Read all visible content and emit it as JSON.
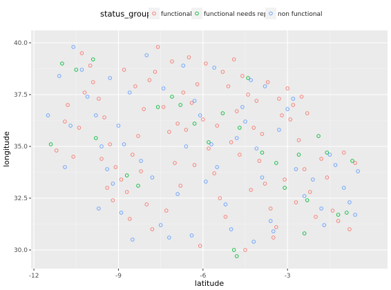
{
  "chart_data": {
    "type": "scatter",
    "xlabel": "latitude",
    "ylabel": "longitude",
    "xlim": [
      -12.1,
      0.55
    ],
    "ylim": [
      29.1,
      40.6
    ],
    "x_ticks": [
      -12,
      -9,
      -6,
      -3
    ],
    "x_tick_labels": [
      "-12",
      "-9",
      "-6",
      "-3"
    ],
    "y_ticks": [
      30.0,
      32.5,
      35.0,
      37.5,
      40.0
    ],
    "y_tick_labels": [
      "30.0",
      "32.5",
      "35.0",
      "37.5",
      "40.0"
    ],
    "grid": true,
    "legend_title": "status_group",
    "legend_position": "top",
    "series": [
      {
        "name": "functional",
        "color": "#f8766d",
        "points": [
          [
            -11.2,
            34.8
          ],
          [
            -10.9,
            36.2
          ],
          [
            -10.6,
            34.5
          ],
          [
            -10.4,
            35.9
          ],
          [
            -10.2,
            37.6
          ],
          [
            -10.0,
            38.9
          ],
          [
            -9.7,
            37.3
          ],
          [
            -9.5,
            36.4
          ],
          [
            -9.3,
            35.1
          ],
          [
            -9.1,
            34.0
          ],
          [
            -8.9,
            33.4
          ],
          [
            -8.7,
            32.8
          ],
          [
            -8.5,
            34.6
          ],
          [
            -8.3,
            35.5
          ],
          [
            -8.1,
            36.8
          ],
          [
            -7.9,
            38.2
          ],
          [
            -7.6,
            39.8
          ],
          [
            -7.4,
            36.9
          ],
          [
            -7.2,
            35.7
          ],
          [
            -7.0,
            34.2
          ],
          [
            -6.8,
            33.1
          ],
          [
            -6.6,
            35.8
          ],
          [
            -6.4,
            37.1
          ],
          [
            -6.2,
            38.0
          ],
          [
            -6.0,
            36.3
          ],
          [
            -5.8,
            34.9
          ],
          [
            -5.6,
            33.7
          ],
          [
            -5.4,
            32.5
          ],
          [
            -5.2,
            31.6
          ],
          [
            -5.0,
            35.2
          ],
          [
            -4.8,
            36.7
          ],
          [
            -4.6,
            38.4
          ],
          [
            -4.4,
            37.5
          ],
          [
            -4.2,
            35.9
          ],
          [
            -4.0,
            34.3
          ],
          [
            -3.8,
            33.2
          ],
          [
            -3.6,
            32.0
          ],
          [
            -3.4,
            31.1
          ],
          [
            -3.2,
            36.5
          ],
          [
            -3.0,
            37.8
          ],
          [
            -2.8,
            37.0
          ],
          [
            -2.6,
            35.3
          ],
          [
            -2.4,
            33.9
          ],
          [
            -2.2,
            32.8
          ],
          [
            -2.0,
            31.6
          ],
          [
            -1.8,
            34.4
          ],
          [
            -1.6,
            33.5
          ],
          [
            -1.4,
            31.9
          ],
          [
            -1.2,
            31.4
          ],
          [
            -1.0,
            34.7
          ],
          [
            -0.8,
            31.0
          ],
          [
            -0.6,
            34.2
          ],
          [
            -9.6,
            34.4
          ],
          [
            -9.4,
            33.0
          ],
          [
            -8.6,
            31.5
          ],
          [
            -8.2,
            33.8
          ],
          [
            -7.8,
            31.0
          ],
          [
            -7.3,
            31.9
          ],
          [
            -6.9,
            36.1
          ],
          [
            -6.7,
            37.6
          ],
          [
            -6.3,
            34.1
          ],
          [
            -5.9,
            39.0
          ],
          [
            -5.5,
            36.0
          ],
          [
            -5.1,
            37.9
          ],
          [
            -4.7,
            34.6
          ],
          [
            -4.3,
            32.9
          ],
          [
            -3.9,
            35.6
          ],
          [
            -3.5,
            30.6
          ],
          [
            -3.1,
            33.4
          ],
          [
            -2.7,
            32.3
          ],
          [
            -2.5,
            37.4
          ],
          [
            -2.3,
            36.6
          ],
          [
            -10.8,
            37.0
          ],
          [
            -10.3,
            39.5
          ],
          [
            -9.9,
            38.1
          ],
          [
            -8.8,
            38.7
          ],
          [
            -8.4,
            37.9
          ],
          [
            -7.7,
            38.6
          ],
          [
            -7.1,
            39.1
          ],
          [
            -6.5,
            39.3
          ],
          [
            -5.3,
            38.6
          ],
          [
            -4.9,
            39.2
          ],
          [
            -4.1,
            37.2
          ],
          [
            -3.7,
            38.1
          ],
          [
            -3.3,
            37.3
          ],
          [
            -2.9,
            36.3
          ],
          [
            -9.2,
            32.4
          ],
          [
            -8.0,
            32.2
          ],
          [
            -6.1,
            30.2
          ],
          [
            -4.5,
            30.0
          ]
        ]
      },
      {
        "name": "functional needs repair",
        "color": "#00ba38",
        "points": [
          [
            -11.4,
            35.1
          ],
          [
            -11.0,
            39.0
          ],
          [
            -10.5,
            38.7
          ],
          [
            -9.8,
            35.4
          ],
          [
            -8.7,
            33.6
          ],
          [
            -7.6,
            36.9
          ],
          [
            -7.1,
            37.4
          ],
          [
            -6.8,
            37.0
          ],
          [
            -5.8,
            35.2
          ],
          [
            -5.3,
            36.6
          ],
          [
            -4.7,
            35.9
          ],
          [
            -4.4,
            38.3
          ],
          [
            -3.9,
            34.7
          ],
          [
            -3.4,
            34.2
          ],
          [
            -3.1,
            33.0
          ],
          [
            -2.6,
            34.6
          ],
          [
            -2.3,
            32.4
          ],
          [
            -1.9,
            35.5
          ],
          [
            -1.6,
            34.7
          ],
          [
            -1.2,
            31.7
          ],
          [
            -0.9,
            31.8
          ],
          [
            -0.7,
            34.3
          ],
          [
            -4.9,
            30.0
          ],
          [
            -4.8,
            29.7
          ],
          [
            -2.4,
            30.8
          ],
          [
            -8.3,
            33.1
          ],
          [
            -6.3,
            36.1
          ],
          [
            -9.9,
            39.2
          ]
        ]
      },
      {
        "name": "non functional",
        "color": "#619cff",
        "points": [
          [
            -11.5,
            36.5
          ],
          [
            -11.1,
            38.4
          ],
          [
            -10.7,
            36.0
          ],
          [
            -10.3,
            38.7
          ],
          [
            -10.1,
            37.4
          ],
          [
            -9.8,
            36.5
          ],
          [
            -9.6,
            35.0
          ],
          [
            -9.4,
            33.9
          ],
          [
            -9.2,
            33.2
          ],
          [
            -9.0,
            36.0
          ],
          [
            -8.8,
            35.1
          ],
          [
            -8.6,
            37.6
          ],
          [
            -8.2,
            34.3
          ],
          [
            -7.8,
            33.5
          ],
          [
            -7.5,
            31.2
          ],
          [
            -7.2,
            30.6
          ],
          [
            -6.9,
            32.7
          ],
          [
            -6.6,
            35.0
          ],
          [
            -6.3,
            37.2
          ],
          [
            -6.1,
            36.5
          ],
          [
            -5.9,
            33.3
          ],
          [
            -5.7,
            35.1
          ],
          [
            -5.5,
            34.0
          ],
          [
            -5.2,
            32.2
          ],
          [
            -5.0,
            31.0
          ],
          [
            -4.8,
            35.4
          ],
          [
            -4.6,
            36.9
          ],
          [
            -4.3,
            38.2
          ],
          [
            -4.1,
            34.9
          ],
          [
            -3.9,
            33.5
          ],
          [
            -3.6,
            31.4
          ],
          [
            -3.3,
            35.8
          ],
          [
            -3.0,
            36.8
          ],
          [
            -2.7,
            33.9
          ],
          [
            -2.4,
            32.6
          ],
          [
            -2.1,
            33.4
          ],
          [
            -1.8,
            32.0
          ],
          [
            -1.5,
            34.6
          ],
          [
            -1.3,
            34.1
          ],
          [
            -1.0,
            33.0
          ],
          [
            -0.8,
            32.3
          ],
          [
            -0.6,
            31.7
          ],
          [
            -10.9,
            34.0
          ],
          [
            -10.6,
            39.8
          ],
          [
            -9.3,
            38.3
          ],
          [
            -8.0,
            39.4
          ],
          [
            -7.4,
            37.8
          ],
          [
            -6.7,
            38.9
          ],
          [
            -5.6,
            38.8
          ],
          [
            -4.5,
            36.2
          ],
          [
            -3.8,
            37.9
          ],
          [
            -2.8,
            37.3
          ],
          [
            -8.5,
            30.5
          ],
          [
            -6.4,
            30.7
          ],
          [
            -4.2,
            30.4
          ],
          [
            -3.5,
            30.9
          ],
          [
            -9.7,
            32.0
          ],
          [
            -8.9,
            31.8
          ],
          [
            -1.7,
            31.2
          ],
          [
            -0.5,
            33.8
          ]
        ]
      }
    ]
  }
}
